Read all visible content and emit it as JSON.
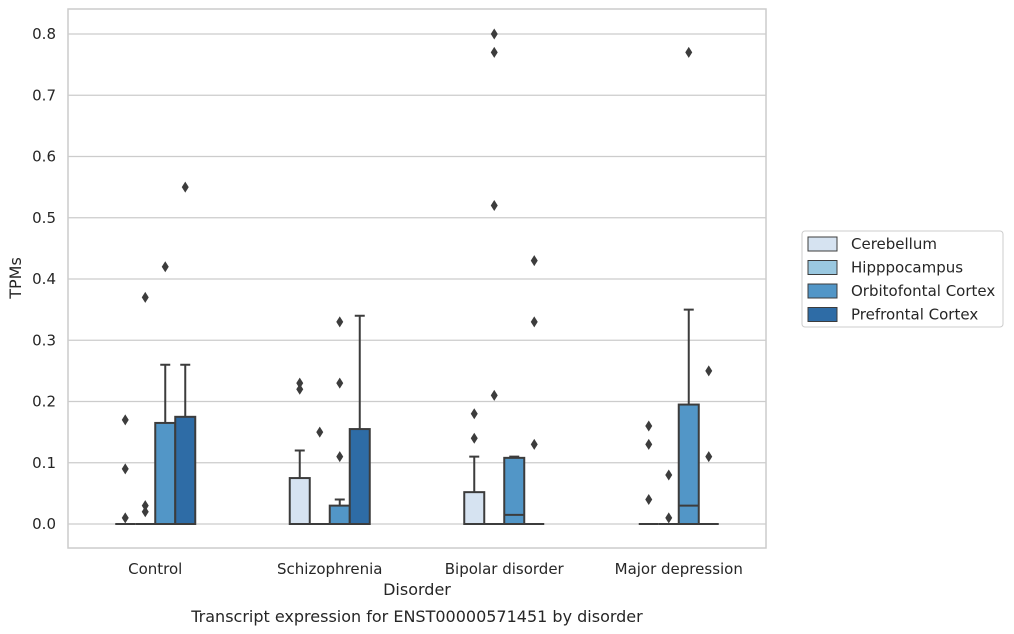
{
  "chart_data": {
    "type": "box",
    "title": "",
    "caption": "Transcript expression for ENST00000571451 by disorder",
    "xlabel": "Disorder",
    "ylabel": "TPMs",
    "ylim": [
      -0.04,
      0.84
    ],
    "yticks": [
      "0.0",
      "0.1",
      "0.2",
      "0.3",
      "0.4",
      "0.5",
      "0.6",
      "0.7",
      "0.8"
    ],
    "grid": "horizontal",
    "legend_position": "right",
    "categories": [
      "Control",
      "Schizophrenia",
      "Bipolar disorder",
      "Major depression"
    ],
    "series": [
      {
        "name": "Cerebellum",
        "color": "#d6e3f1",
        "boxes": [
          {
            "q1": 0.0,
            "median": 0.0,
            "q3": 0.0,
            "whisker_low": 0.0,
            "whisker_high": 0.0,
            "outliers": [
              0.17,
              0.09,
              0.01
            ]
          },
          {
            "q1": 0.0,
            "median": 0.0,
            "q3": 0.075,
            "whisker_low": 0.0,
            "whisker_high": 0.12,
            "outliers": [
              0.23,
              0.22
            ]
          },
          {
            "q1": 0.0,
            "median": 0.0,
            "q3": 0.052,
            "whisker_low": 0.0,
            "whisker_high": 0.11,
            "outliers": [
              0.18,
              0.14
            ]
          },
          {
            "q1": 0.0,
            "median": 0.0,
            "q3": 0.0,
            "whisker_low": 0.0,
            "whisker_high": 0.0,
            "outliers": [
              0.16,
              0.13,
              0.04
            ]
          }
        ]
      },
      {
        "name": "Hipppocampus",
        "color": "#9ac8e0",
        "boxes": [
          {
            "q1": 0.0,
            "median": 0.0,
            "q3": 0.0,
            "whisker_low": 0.0,
            "whisker_high": 0.0,
            "outliers": [
              0.37,
              0.03,
              0.02
            ]
          },
          {
            "q1": 0.0,
            "median": 0.0,
            "q3": 0.0,
            "whisker_low": 0.0,
            "whisker_high": 0.0,
            "outliers": [
              0.15
            ]
          },
          {
            "q1": 0.0,
            "median": 0.0,
            "q3": 0.0,
            "whisker_low": 0.0,
            "whisker_high": 0.0,
            "outliers": [
              0.8,
              0.77,
              0.52,
              0.21
            ]
          },
          {
            "q1": 0.0,
            "median": 0.0,
            "q3": 0.0,
            "whisker_low": 0.0,
            "whisker_high": 0.0,
            "outliers": [
              0.08,
              0.01
            ]
          }
        ]
      },
      {
        "name": "Orbitofontal Cortex",
        "color": "#5296c7",
        "boxes": [
          {
            "q1": 0.0,
            "median": 0.0,
            "q3": 0.165,
            "whisker_low": 0.0,
            "whisker_high": 0.26,
            "outliers": [
              0.42
            ]
          },
          {
            "q1": 0.0,
            "median": 0.0,
            "q3": 0.03,
            "whisker_low": 0.0,
            "whisker_high": 0.04,
            "outliers": [
              0.33,
              0.23,
              0.11
            ]
          },
          {
            "q1": 0.0,
            "median": 0.015,
            "q3": 0.108,
            "whisker_low": 0.0,
            "whisker_high": 0.11,
            "outliers": []
          },
          {
            "q1": 0.0,
            "median": 0.03,
            "q3": 0.195,
            "whisker_low": 0.0,
            "whisker_high": 0.35,
            "outliers": [
              0.77
            ]
          }
        ]
      },
      {
        "name": "Prefrontal Cortex",
        "color": "#2e6ca6",
        "boxes": [
          {
            "q1": 0.0,
            "median": 0.0,
            "q3": 0.175,
            "whisker_low": 0.0,
            "whisker_high": 0.26,
            "outliers": [
              0.55
            ]
          },
          {
            "q1": 0.0,
            "median": 0.0,
            "q3": 0.155,
            "whisker_low": 0.0,
            "whisker_high": 0.34,
            "outliers": []
          },
          {
            "q1": 0.0,
            "median": 0.0,
            "q3": 0.0,
            "whisker_low": 0.0,
            "whisker_high": 0.0,
            "outliers": [
              0.43,
              0.33,
              0.13
            ]
          },
          {
            "q1": 0.0,
            "median": 0.0,
            "q3": 0.0,
            "whisker_low": 0.0,
            "whisker_high": 0.0,
            "outliers": [
              0.25,
              0.11
            ]
          }
        ]
      }
    ]
  }
}
